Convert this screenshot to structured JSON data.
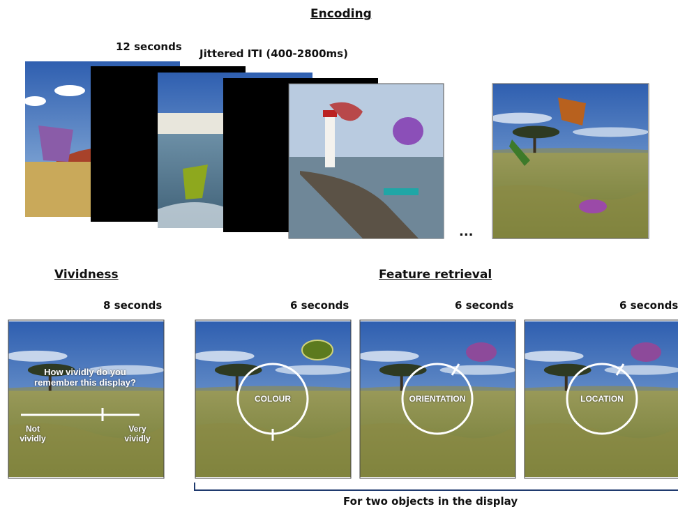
{
  "encoding": {
    "title": "Encoding",
    "duration": "12 seconds",
    "iti": "Jittered ITI (400-2800ms)",
    "ellipsis": "..."
  },
  "vividness": {
    "title": "Vividness",
    "duration": "8 seconds",
    "question": "How vividly do you remember this display?",
    "scale_low": "Not vividly",
    "scale_high": "Very vividly"
  },
  "feature_retrieval": {
    "title": "Feature retrieval",
    "panels": [
      {
        "duration": "6 seconds",
        "label": "COLOUR"
      },
      {
        "duration": "6 seconds",
        "label": "ORIENTATION"
      },
      {
        "duration": "6 seconds",
        "label": "LOCATION"
      }
    ],
    "note": "For two objects in the display"
  }
}
